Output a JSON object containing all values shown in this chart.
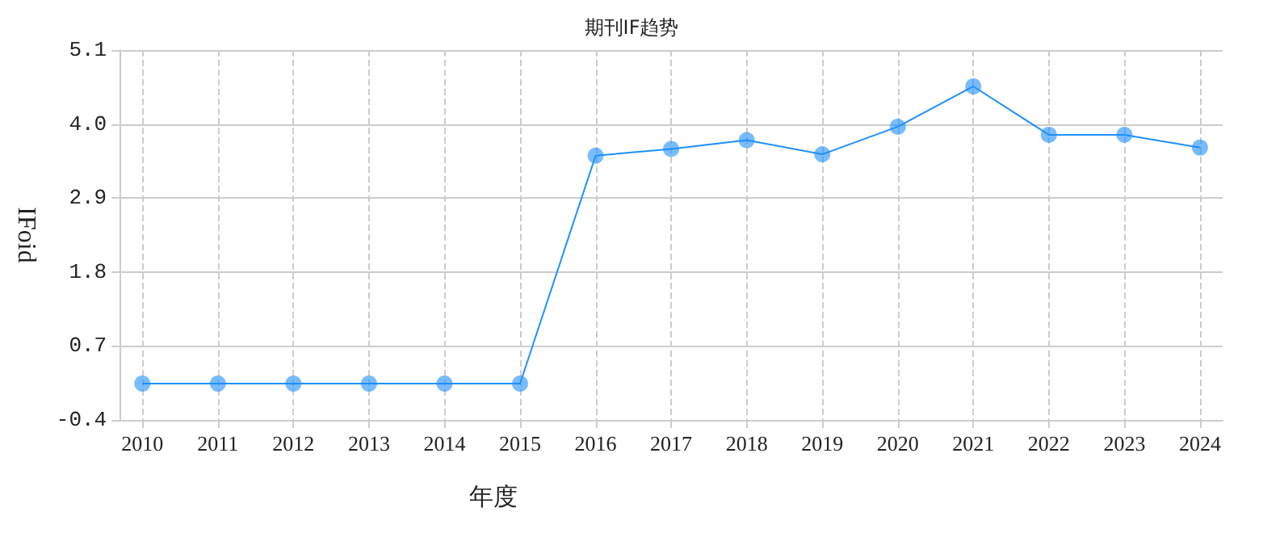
{
  "chart_data": {
    "type": "line",
    "title": "期刊IF趋势",
    "xlabel": "年度",
    "ylabel": "IFoid",
    "x": [
      2010,
      2011,
      2012,
      2013,
      2014,
      2015,
      2016,
      2017,
      2018,
      2019,
      2020,
      2021,
      2022,
      2023,
      2024
    ],
    "xlim": [
      2009.7,
      2024.3
    ],
    "xticks": [
      2010,
      2011,
      2012,
      2013,
      2014,
      2015,
      2016,
      2017,
      2018,
      2019,
      2020,
      2021,
      2022,
      2023,
      2024
    ],
    "ylim": [
      -0.4,
      5.1
    ],
    "yticks": [
      -0.4,
      0.7,
      1.8,
      2.9,
      {
        "value": 4,
        "label": "4.0"
      },
      5.1
    ],
    "series": [
      {
        "color": "#1e90ff",
        "values": [
          0.14,
          0.14,
          0.14,
          0.14,
          0.14,
          0.14,
          3.53,
          3.63,
          3.76,
          3.55,
          3.96,
          4.56,
          3.84,
          3.84,
          3.65
        ]
      }
    ],
    "grid": true,
    "marker": "circle",
    "line_style": "solid"
  }
}
